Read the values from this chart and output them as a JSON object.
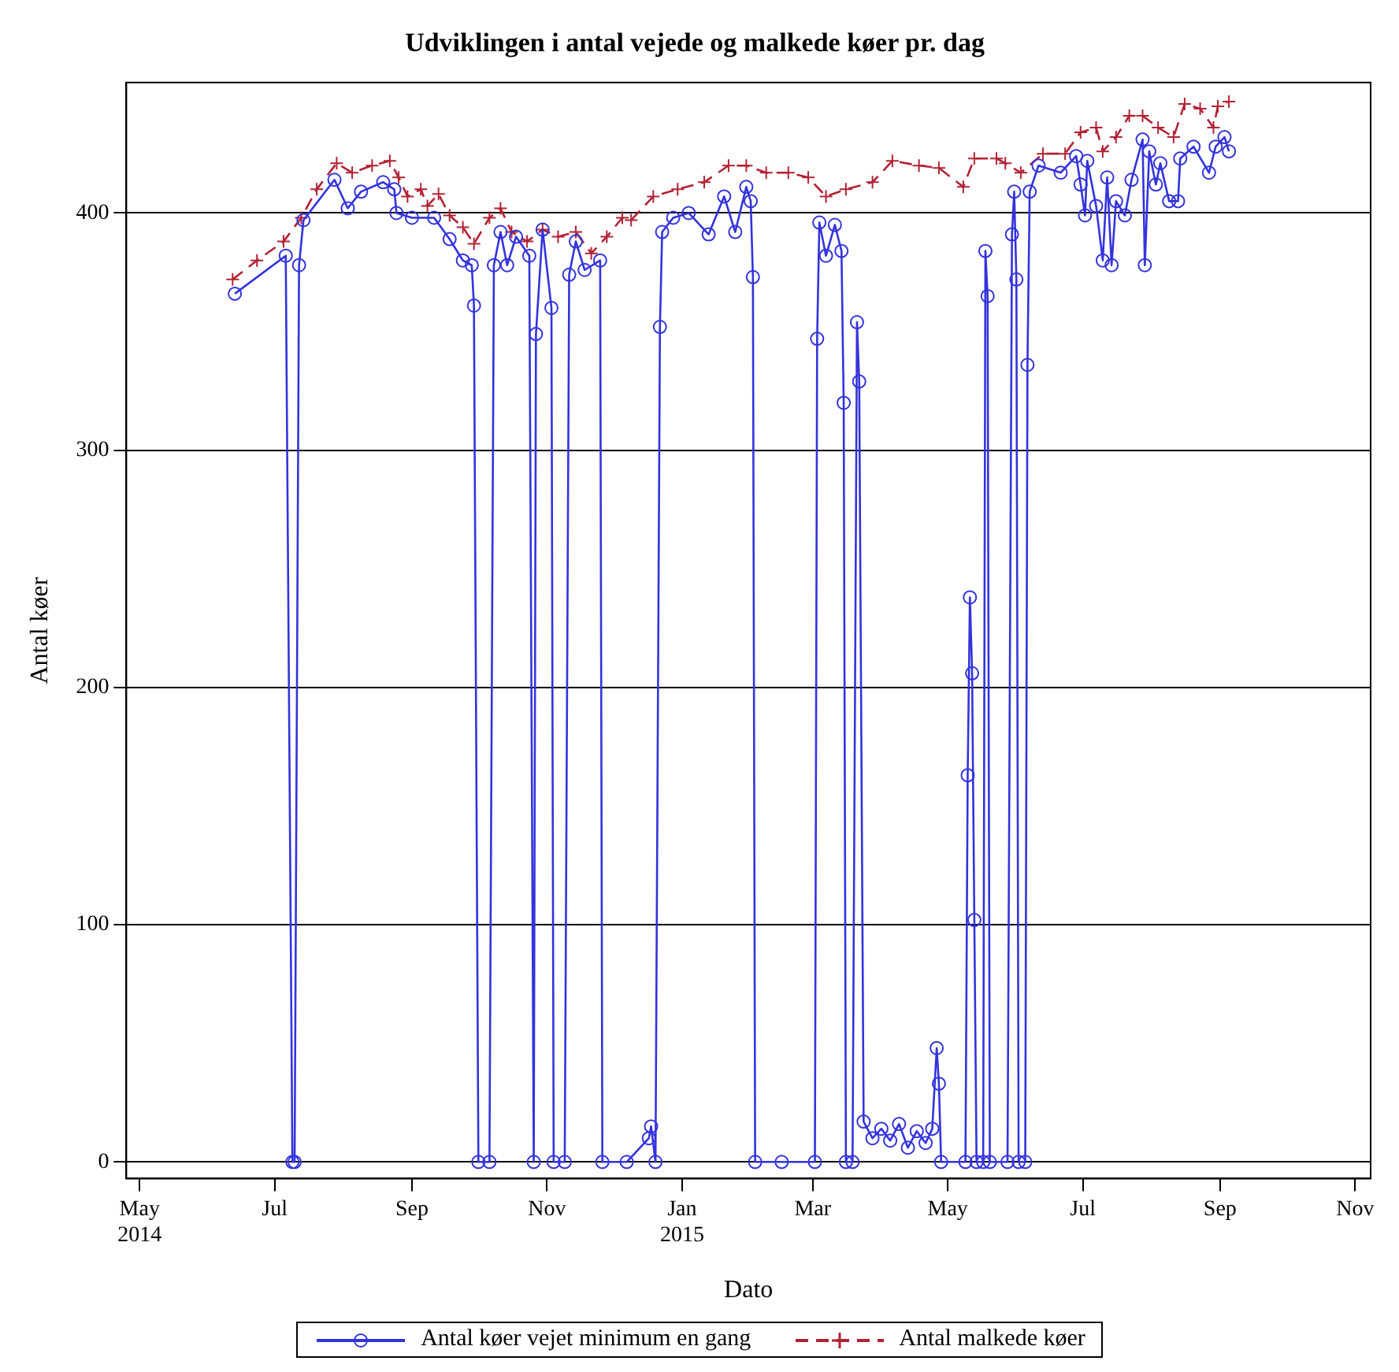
{
  "chart_data": {
    "type": "line",
    "title": "Udviklingen i antal vejede og malkede køer pr. dag",
    "xlabel": "Dato",
    "ylabel": "Antal køer",
    "xlim": [
      "2014-04-25",
      "2015-11-08"
    ],
    "ylim": [
      -7,
      455
    ],
    "xticks": [
      {
        "value": "2014-05-01",
        "label": "May\n2014"
      },
      {
        "value": "2014-07-01",
        "label": "Jul"
      },
      {
        "value": "2014-09-01",
        "label": "Sep"
      },
      {
        "value": "2014-11-01",
        "label": "Nov"
      },
      {
        "value": "2015-01-01",
        "label": "Jan\n2015"
      },
      {
        "value": "2015-03-01",
        "label": "Mar"
      },
      {
        "value": "2015-05-01",
        "label": "May"
      },
      {
        "value": "2015-07-01",
        "label": "Jul"
      },
      {
        "value": "2015-09-01",
        "label": "Sep"
      },
      {
        "value": "2015-11-01",
        "label": "Nov"
      }
    ],
    "yticks": [
      0,
      100,
      200,
      300,
      400
    ],
    "grid": "y",
    "legend": "bottom",
    "series": [
      {
        "name": "Antal køer vejet minimum en gang",
        "color": "#3333dd",
        "marker": "circle",
        "line_style": "solid",
        "x": [
          "2014-06-13",
          "2014-07-06",
          "2014-07-09",
          "2014-07-10",
          "2014-07-12",
          "2014-07-14",
          "2014-07-28",
          "2014-08-03",
          "2014-08-09",
          "2014-08-19",
          "2014-08-24",
          "2014-08-25",
          "2014-09-01",
          "2014-09-11",
          "2014-09-18",
          "2014-09-24",
          "2014-09-28",
          "2014-09-29",
          "2014-10-01",
          "2014-10-06",
          "2014-10-08",
          "2014-10-11",
          "2014-10-14",
          "2014-10-18",
          "2014-10-24",
          "2014-10-26",
          "2014-10-27",
          "2014-10-30",
          "2014-11-03",
          "2014-11-04",
          "2014-11-09",
          "2014-11-11",
          "2014-11-14",
          "2014-11-18",
          "2014-11-25",
          "2014-11-26",
          "2014-12-07",
          "2014-12-17",
          "2014-12-18",
          "2014-12-20",
          "2014-12-22",
          "2014-12-23",
          "2014-12-28",
          "2015-01-04",
          "2015-01-13",
          "2015-01-20",
          "2015-01-25",
          "2015-01-30",
          "2015-02-01",
          "2015-02-02",
          "2015-02-03",
          "2015-02-15",
          "2015-03-02",
          "2015-03-03",
          "2015-03-04",
          "2015-03-07",
          "2015-03-11",
          "2015-03-14",
          "2015-03-15",
          "2015-03-16",
          "2015-03-19",
          "2015-03-21",
          "2015-03-22",
          "2015-03-24",
          "2015-03-28",
          "2015-04-01",
          "2015-04-05",
          "2015-04-09",
          "2015-04-13",
          "2015-04-17",
          "2015-04-21",
          "2015-04-24",
          "2015-04-26",
          "2015-04-27",
          "2015-04-28",
          "2015-05-09",
          "2015-05-10",
          "2015-05-11",
          "2015-05-12",
          "2015-05-13",
          "2015-05-14",
          "2015-05-17",
          "2015-05-18",
          "2015-05-19",
          "2015-05-20",
          "2015-05-28",
          "2015-05-30",
          "2015-05-31",
          "2015-06-01",
          "2015-06-02",
          "2015-06-05",
          "2015-06-06",
          "2015-06-07",
          "2015-06-11",
          "2015-06-21",
          "2015-06-28",
          "2015-06-30",
          "2015-07-02",
          "2015-07-03",
          "2015-07-07",
          "2015-07-10",
          "2015-07-12",
          "2015-07-14",
          "2015-07-16",
          "2015-07-20",
          "2015-07-23",
          "2015-07-28",
          "2015-07-29",
          "2015-07-31",
          "2015-08-03",
          "2015-08-05",
          "2015-08-09",
          "2015-08-13",
          "2015-08-14",
          "2015-08-20",
          "2015-08-27",
          "2015-08-30",
          "2015-09-03",
          "2015-09-05"
        ],
        "values": [
          366,
          382,
          0,
          0,
          378,
          397,
          414,
          402,
          409,
          413,
          410,
          400,
          398,
          398,
          389,
          380,
          378,
          361,
          0,
          0,
          378,
          392,
          378,
          390,
          382,
          0,
          349,
          393,
          360,
          0,
          0,
          374,
          388,
          376,
          380,
          0,
          0,
          10,
          15,
          0,
          352,
          392,
          398,
          400,
          391,
          407,
          392,
          411,
          405,
          373,
          0,
          0,
          0,
          347,
          396,
          382,
          395,
          384,
          320,
          0,
          0,
          354,
          329,
          17,
          10,
          14,
          9,
          16,
          6,
          13,
          8,
          14,
          48,
          33,
          0,
          0,
          163,
          238,
          206,
          102,
          0,
          0,
          384,
          365,
          0,
          0,
          391,
          409,
          372,
          0,
          0,
          336,
          409,
          420,
          417,
          424,
          412,
          399,
          422,
          403,
          380,
          415,
          378,
          405,
          399,
          414,
          431,
          378,
          426,
          412,
          421,
          405,
          405,
          423,
          428,
          417,
          428,
          432,
          426
        ]
      },
      {
        "name": "Antal malkede køer",
        "color": "#b22234",
        "marker": "cross",
        "line_style": "dashed",
        "x": [
          "2014-06-12",
          "2014-06-23",
          "2014-07-05",
          "2014-07-13",
          "2014-07-20",
          "2014-07-29",
          "2014-08-05",
          "2014-08-14",
          "2014-08-22",
          "2014-08-26",
          "2014-08-30",
          "2014-09-05",
          "2014-09-08",
          "2014-09-13",
          "2014-09-18",
          "2014-09-24",
          "2014-09-29",
          "2014-10-06",
          "2014-10-11",
          "2014-10-16",
          "2014-10-23",
          "2014-10-30",
          "2014-11-06",
          "2014-11-14",
          "2014-11-21",
          "2014-11-28",
          "2014-12-05",
          "2014-12-09",
          "2014-12-19",
          "2014-12-30",
          "2015-01-11",
          "2015-01-22",
          "2015-01-30",
          "2015-02-08",
          "2015-02-18",
          "2015-02-27",
          "2015-03-07",
          "2015-03-16",
          "2015-03-28",
          "2015-04-06",
          "2015-04-18",
          "2015-04-27",
          "2015-05-08",
          "2015-05-13",
          "2015-05-23",
          "2015-05-27",
          "2015-06-03",
          "2015-06-13",
          "2015-06-23",
          "2015-06-30",
          "2015-07-07",
          "2015-07-10",
          "2015-07-16",
          "2015-07-22",
          "2015-07-28",
          "2015-08-04",
          "2015-08-11",
          "2015-08-16",
          "2015-08-23",
          "2015-08-29",
          "2015-08-31",
          "2015-09-05"
        ],
        "values": [
          372,
          380,
          388,
          398,
          410,
          421,
          417,
          420,
          422,
          415,
          407,
          410,
          403,
          408,
          399,
          394,
          387,
          398,
          402,
          392,
          388,
          393,
          390,
          392,
          383,
          390,
          398,
          397,
          407,
          410,
          413,
          420,
          420,
          417,
          417,
          415,
          407,
          410,
          413,
          422,
          420,
          419,
          411,
          423,
          423,
          421,
          417,
          425,
          425,
          434,
          436,
          426,
          432,
          441,
          441,
          436,
          432,
          446,
          444,
          436,
          445,
          447
        ]
      }
    ]
  }
}
